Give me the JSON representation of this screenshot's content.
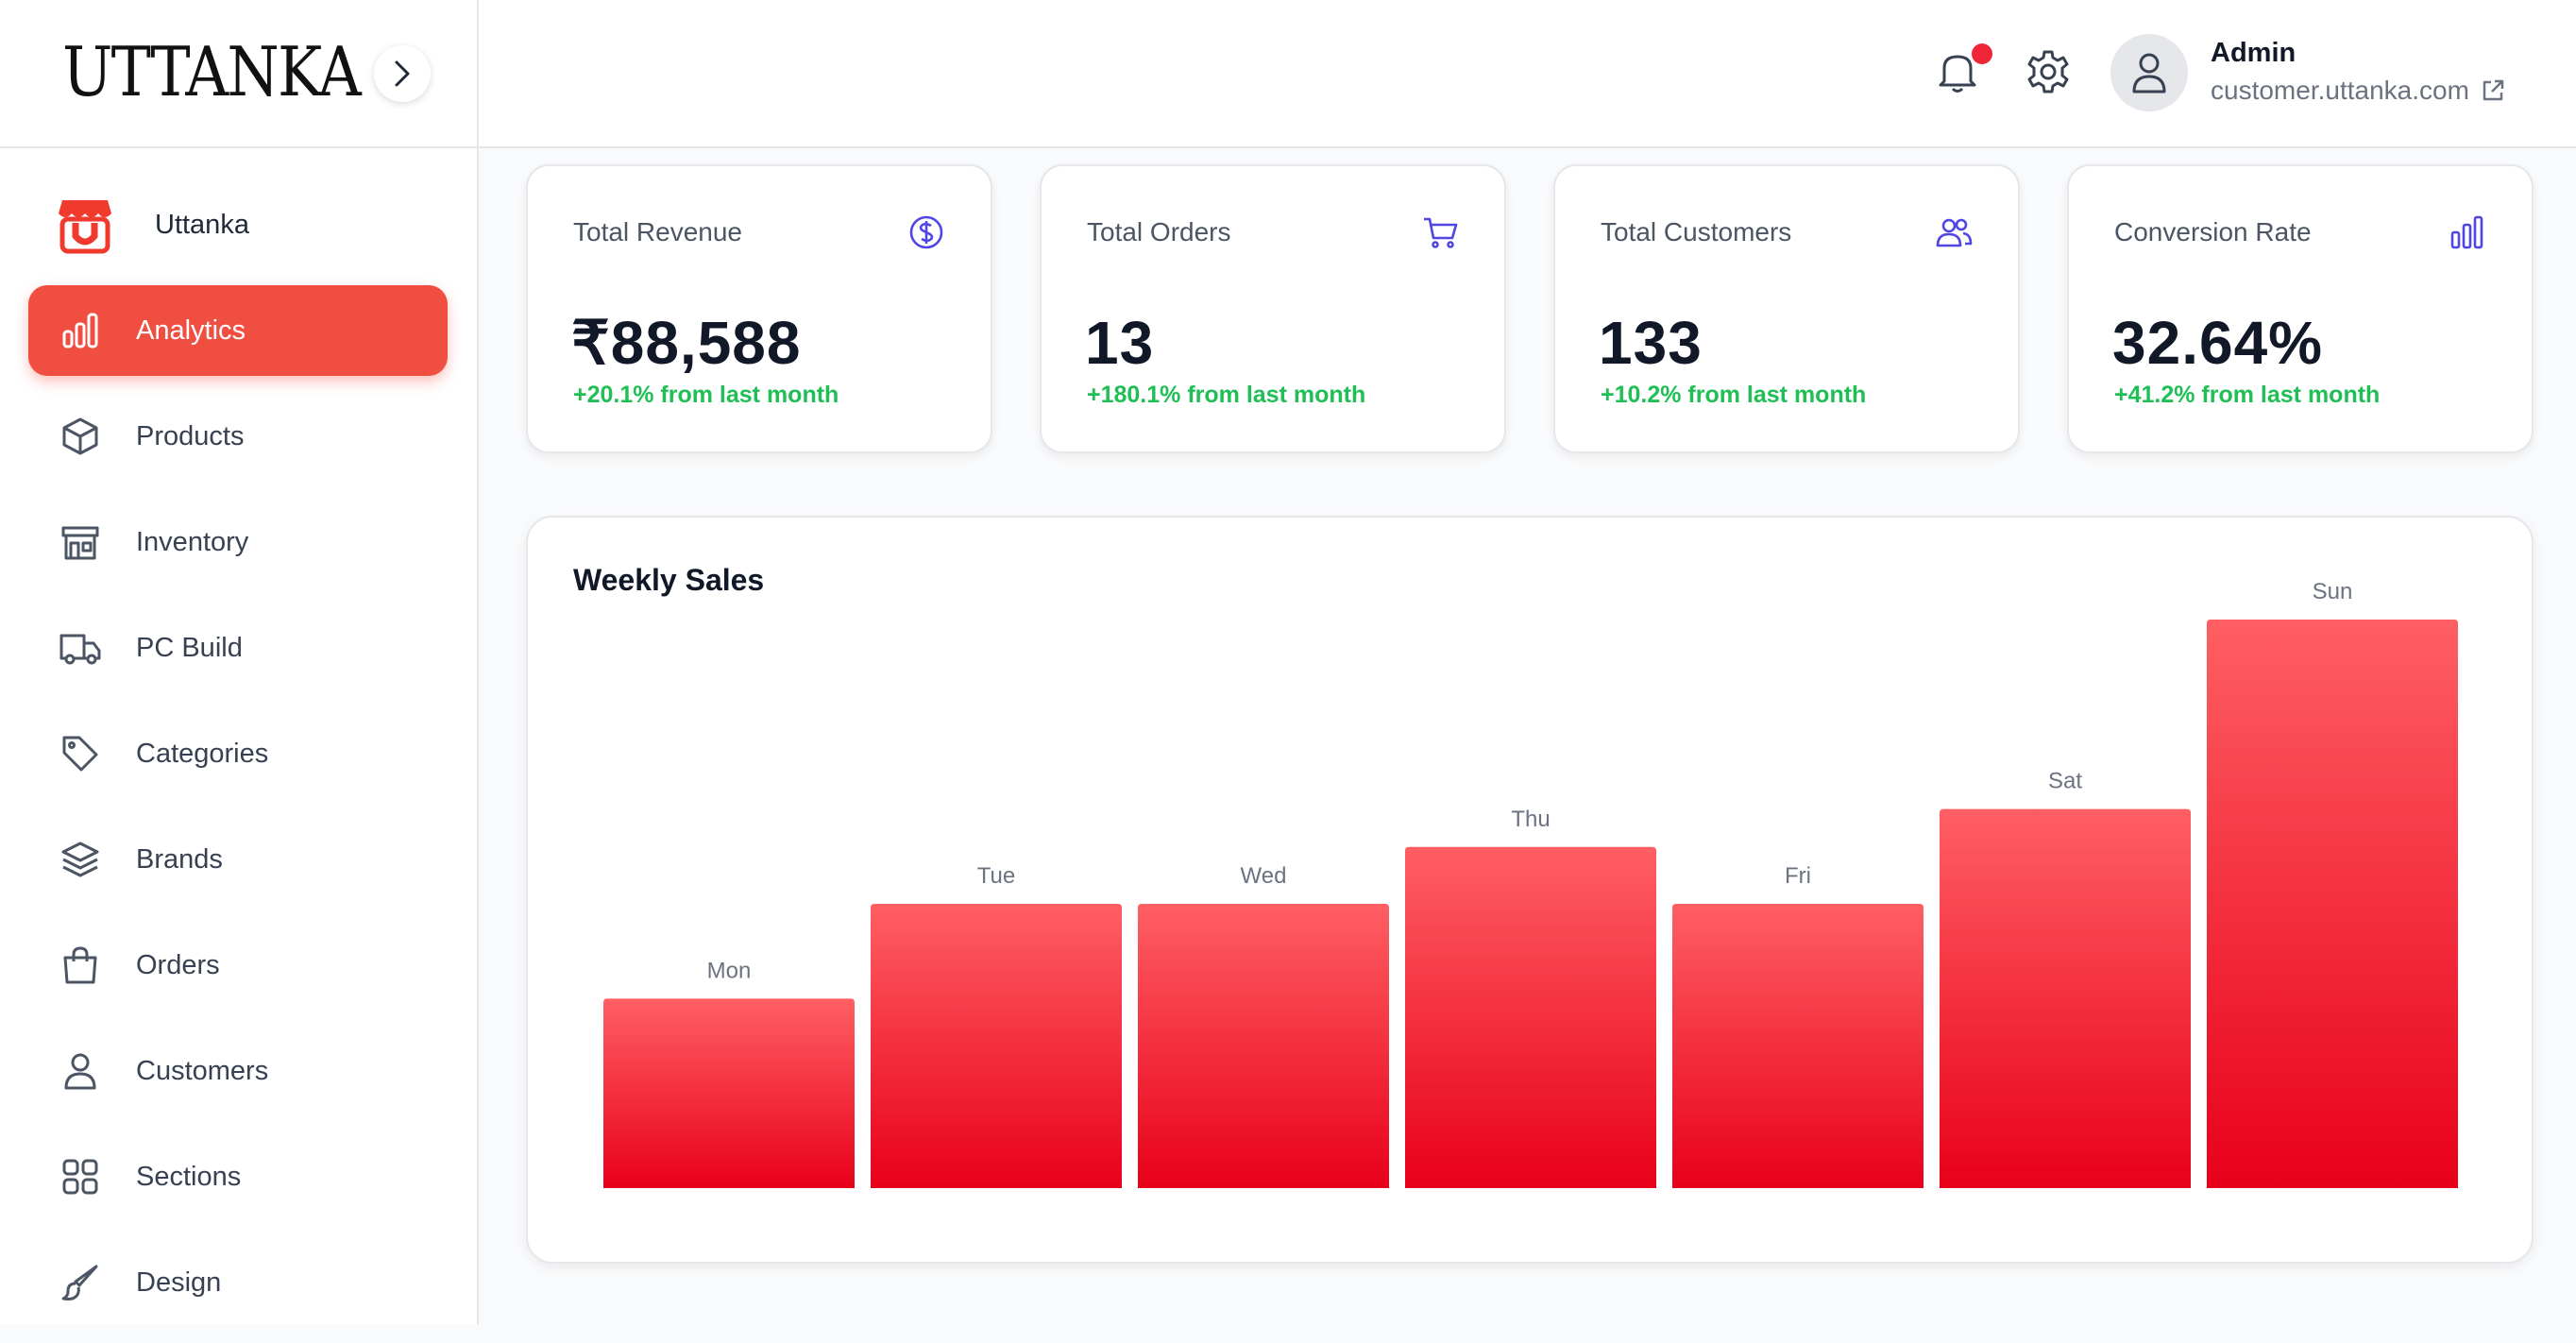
{
  "brand": {
    "logo_text": "UTTANKA"
  },
  "store": {
    "name": "Uttanka"
  },
  "nav": {
    "items": [
      {
        "label": "Analytics",
        "icon": "bar-chart-icon",
        "active": true
      },
      {
        "label": "Products",
        "icon": "box-icon"
      },
      {
        "label": "Inventory",
        "icon": "store-icon"
      },
      {
        "label": "PC Build",
        "icon": "truck-icon"
      },
      {
        "label": "Categories",
        "icon": "tag-icon"
      },
      {
        "label": "Brands",
        "icon": "layers-icon"
      },
      {
        "label": "Orders",
        "icon": "shopping-bag-icon"
      },
      {
        "label": "Customers",
        "icon": "user-icon"
      },
      {
        "label": "Sections",
        "icon": "grid-icon"
      },
      {
        "label": "Design",
        "icon": "brush-icon"
      }
    ]
  },
  "header": {
    "user_name": "Admin",
    "user_site": "customer.uttanka.com",
    "notification_dot_color": "#ef2637"
  },
  "stats": [
    {
      "title": "Total Revenue",
      "value": "₹88,588",
      "change": "+20.1% from last month",
      "icon": "dollar-circle-icon"
    },
    {
      "title": "Total Orders",
      "value": "13",
      "change": "+180.1% from last month",
      "icon": "cart-icon"
    },
    {
      "title": "Total Customers",
      "value": "133",
      "change": "+10.2% from last month",
      "icon": "users-icon"
    },
    {
      "title": "Conversion Rate",
      "value": "32.64%",
      "change": "+41.2% from last month",
      "icon": "bar-chart-icon"
    }
  ],
  "colors": {
    "accent": "#f04e41",
    "positive": "#1fbf55",
    "icon_accent": "#4f46e5",
    "bar_top": "#ff5f63",
    "bar_bottom": "#e8001a"
  },
  "chart_data": {
    "type": "bar",
    "title": "Weekly Sales",
    "categories": [
      "Mon",
      "Tue",
      "Wed",
      "Thu",
      "Fri",
      "Sat",
      "Sun"
    ],
    "values": [
      2,
      3,
      3,
      3.6,
      3,
      4,
      6
    ],
    "xlabel": "",
    "ylabel": "",
    "grid": false,
    "legend": "none"
  }
}
